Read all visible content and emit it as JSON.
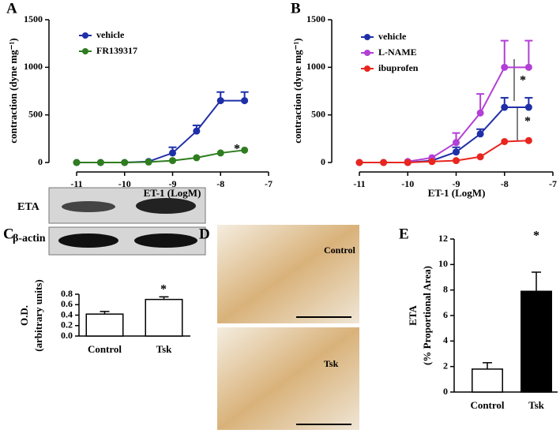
{
  "chart_data": [
    {
      "type": "line",
      "panel_label": "A",
      "x_label": "ET-1 (LogM)",
      "y_label": "contraction (dyne mg⁻¹)",
      "x": [
        -11,
        -10.5,
        -10,
        -9.5,
        -9,
        -8.5,
        -8,
        -7.5
      ],
      "xlim": [
        -11,
        -7
      ],
      "xticks": [
        -11,
        -10,
        -9,
        -8,
        -7
      ],
      "ylim": [
        0,
        1500
      ],
      "yticks": [
        0,
        500,
        1000,
        1500
      ],
      "series": [
        {
          "name": "vehicle",
          "color": "#1f2fa8",
          "values": [
            0,
            0,
            0,
            10,
            100,
            330,
            650,
            650
          ],
          "errors": [
            null,
            null,
            null,
            null,
            60,
            60,
            90,
            90
          ]
        },
        {
          "name": "FR139317",
          "color": "#2e7d1f",
          "values": [
            0,
            0,
            0,
            5,
            20,
            50,
            100,
            130
          ],
          "errors": [
            null,
            null,
            null,
            null,
            null,
            null,
            null,
            null
          ]
        }
      ],
      "annotations": [
        "*"
      ]
    },
    {
      "type": "line",
      "panel_label": "B",
      "x_label": "ET-1 (LogM)",
      "y_label": "contraction (dyne mg⁻¹)",
      "x": [
        -11,
        -10.5,
        -10,
        -9.5,
        -9,
        -8.5,
        -8,
        -7.5
      ],
      "xlim": [
        -11,
        -7
      ],
      "xticks": [
        -11,
        -10,
        -9,
        -8,
        -7
      ],
      "ylim": [
        0,
        1500
      ],
      "yticks": [
        0,
        500,
        1000,
        1500
      ],
      "series": [
        {
          "name": "vehicle",
          "color": "#1f2fa8",
          "values": [
            0,
            0,
            0,
            20,
            110,
            300,
            580,
            580
          ],
          "errors": [
            null,
            null,
            null,
            null,
            50,
            50,
            100,
            100
          ]
        },
        {
          "name": "L-NAME",
          "color": "#b23fd6",
          "values": [
            null,
            null,
            10,
            50,
            210,
            520,
            1000,
            1000
          ],
          "errors": [
            null,
            null,
            null,
            null,
            100,
            200,
            280,
            280
          ]
        },
        {
          "name": "ibuprofen",
          "color": "#e8261f",
          "values": [
            0,
            0,
            0,
            10,
            20,
            60,
            220,
            230
          ],
          "errors": [
            null,
            null,
            null,
            null,
            null,
            null,
            null,
            null
          ]
        }
      ],
      "annotations": [
        "*",
        "*"
      ]
    },
    {
      "type": "bar",
      "panel_label": "C",
      "blot_labels": [
        "ETA",
        "β-actin"
      ],
      "y_label": [
        "O.D.",
        "(arbitrary units)"
      ],
      "categories": [
        "Control",
        "Tsk"
      ],
      "values": [
        0.42,
        0.7
      ],
      "errors": [
        0.05,
        0.05
      ],
      "colors": [
        "#ffffff",
        "#ffffff"
      ],
      "ylim": [
        0,
        0.8
      ],
      "yticks": [
        {
          "value": 0,
          "label": "0.0"
        },
        0.2,
        0.4,
        0.6,
        0.8
      ],
      "annotations": [
        "*"
      ]
    },
    {
      "type": "bar",
      "panel_label": "E",
      "y_label": [
        "ETA",
        "(% Proportional Area)"
      ],
      "categories": [
        "Control",
        "Tsk"
      ],
      "values": [
        1.8,
        7.9
      ],
      "errors": [
        0.5,
        1.5
      ],
      "colors": [
        "#ffffff",
        "#000000"
      ],
      "ylim": [
        0,
        12
      ],
      "yticks": [
        0,
        2,
        4,
        6,
        8,
        10,
        12
      ],
      "annotations": [
        "*"
      ]
    }
  ],
  "images": {
    "panel_label": "D",
    "labels": [
      "Control",
      "Tsk"
    ]
  }
}
